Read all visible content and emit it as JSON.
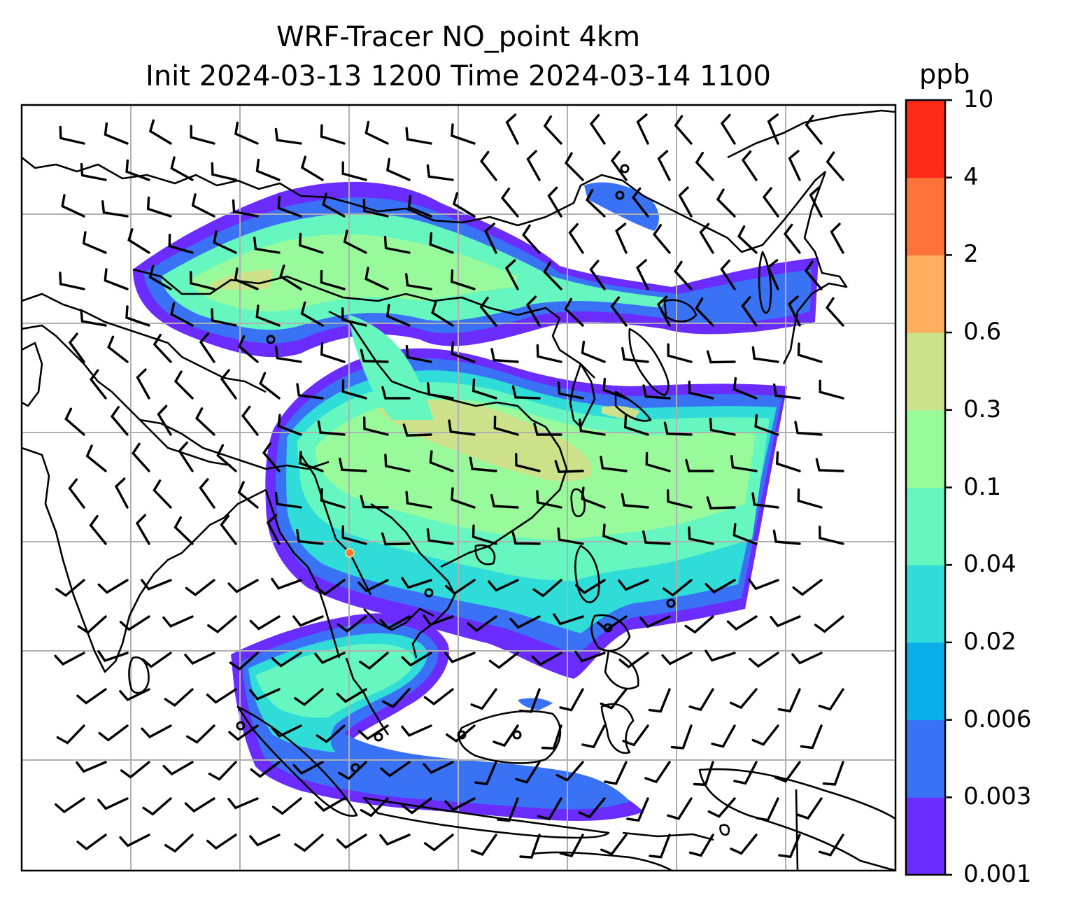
{
  "title_line1": "WRF-Tracer NO_point 4km",
  "title_line2": "Init 2024-03-13 1200 Time 2024-03-14 1100",
  "colorbar": {
    "unit": "ppb",
    "ticks": [
      "0.001",
      "0.003",
      "0.006",
      "0.02",
      "0.04",
      "0.1",
      "0.3",
      "0.6",
      "2",
      "4",
      "10"
    ],
    "colors": [
      "#6a2cff",
      "#3a72f6",
      "#0aaee8",
      "#2fdcd8",
      "#66f7c0",
      "#98fa9a",
      "#cde08a",
      "#ffae60",
      "#ff733a",
      "#ff2a18"
    ]
  },
  "map_style": {
    "gridlines": "on",
    "grid_color": "#b0b0b0",
    "coastline_color": "#000000",
    "wind_barb_color": "#000000"
  },
  "stations": "circle-markers"
}
